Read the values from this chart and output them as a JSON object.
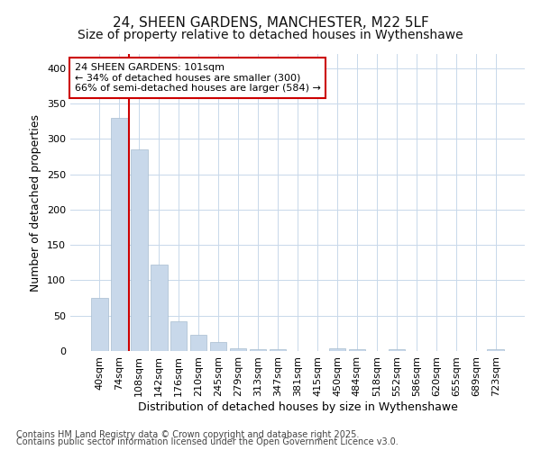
{
  "title_line1": "24, SHEEN GARDENS, MANCHESTER, M22 5LF",
  "title_line2": "Size of property relative to detached houses in Wythenshawe",
  "xlabel": "Distribution of detached houses by size in Wythenshawe",
  "ylabel": "Number of detached properties",
  "categories": [
    "40sqm",
    "74sqm",
    "108sqm",
    "142sqm",
    "176sqm",
    "210sqm",
    "245sqm",
    "279sqm",
    "313sqm",
    "347sqm",
    "381sqm",
    "415sqm",
    "450sqm",
    "484sqm",
    "518sqm",
    "552sqm",
    "586sqm",
    "620sqm",
    "655sqm",
    "689sqm",
    "723sqm"
  ],
  "values": [
    75,
    330,
    285,
    122,
    42,
    23,
    13,
    4,
    3,
    3,
    0,
    0,
    4,
    3,
    0,
    2,
    0,
    0,
    0,
    0,
    3
  ],
  "bar_color": "#c8d8ea",
  "bar_edge_color": "#a8bdd0",
  "vline_x": 1.5,
  "vline_color": "#cc0000",
  "annotation_text": "24 SHEEN GARDENS: 101sqm\n← 34% of detached houses are smaller (300)\n66% of semi-detached houses are larger (584) →",
  "annotation_box_facecolor": "#ffffff",
  "annotation_box_edgecolor": "#cc0000",
  "annotation_text_color": "#000000",
  "footer_line1": "Contains HM Land Registry data © Crown copyright and database right 2025.",
  "footer_line2": "Contains public sector information licensed under the Open Government Licence v3.0.",
  "ylim": [
    0,
    420
  ],
  "yticks": [
    0,
    50,
    100,
    150,
    200,
    250,
    300,
    350,
    400
  ],
  "background_color": "#ffffff",
  "grid_color": "#c8d8ea",
  "title1_fontsize": 11,
  "title2_fontsize": 10,
  "axis_label_fontsize": 9,
  "tick_fontsize": 8,
  "footer_fontsize": 7,
  "annotation_fontsize": 8
}
